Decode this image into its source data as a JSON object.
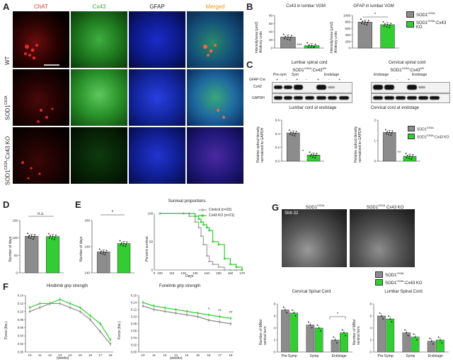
{
  "panelA": {
    "letter": "A",
    "columns": [
      {
        "label": "ChAT",
        "color": "#e8342a"
      },
      {
        "label": "Cx43",
        "color": "#2fae2f"
      },
      {
        "label": "GFAP",
        "color": "#222222"
      },
      {
        "label": "Merged",
        "color": "#e89a1a"
      }
    ],
    "rows": [
      "WT",
      "SOD1",
      "SOD1"
    ],
    "row_sup": [
      "",
      "G93A",
      "G93A"
    ],
    "row_suffix": [
      "",
      "",
      ":Cx43 KO"
    ]
  },
  "panelB": {
    "letter": "B",
    "left_title": "Cx43 in lumbar VGM",
    "right_title": "GFAP in lumbar VGM",
    "left_ylabel": "Intensity/area (µm2)\nArbitrary units",
    "right_ylabel": "Intensity/area (µm2)\nArbitrary units",
    "left_sig": "***",
    "right_sig": "*",
    "legend": [
      "SOD1",
      "SOD1"
    ],
    "legend_sup": [
      "G93A",
      "G93A"
    ],
    "legend_suffix": [
      "",
      ":Cx43 KO"
    ]
  },
  "panelC": {
    "letter": "C",
    "left_title": "Lumbar spinal cord",
    "right_title": "Cervical spinal cord",
    "left_geno": "SOD1",
    "left_geno_sup": "G93A",
    "left_geno_suffix": ":Cx43",
    "left_geno_sup2": "fl/fl",
    "right_geno": "SOD1",
    "right_geno_sup": "G93A",
    "right_geno_suffix": ":Cx43",
    "right_geno_sup2": "fl/fl",
    "row_labels": [
      "GFAP-Cre",
      "Cx43",
      "GAPDH"
    ],
    "stage_labels": [
      "Pre-sym",
      "Sym",
      "Endstage",
      "Endstage",
      "Endstage"
    ],
    "cre_marks": [
      "+",
      "-",
      "+",
      "-",
      "+",
      "-",
      "+",
      "-",
      "-",
      "+"
    ],
    "lumbar_chart_title": "Lumbar cord at endstage",
    "cervical_chart_title": "Cervical cord at endstage",
    "ylabel": "Relative optical density\nnormalized to GAPDH",
    "lumbar_sig": "*",
    "cervical_sig": "**"
  },
  "panelD": {
    "letter": "D",
    "ylabel": "Number of days",
    "sig": "n.s."
  },
  "panelE": {
    "letter": "E",
    "ylabel": "Number of days",
    "sig": "*",
    "survival_title": "Survival proportions",
    "survival_ylabel": "Percent survival",
    "survival_xlabel": "Days",
    "legend": [
      "Control (n=20)",
      "Cx43 KO (n=21)"
    ]
  },
  "panelF": {
    "letter": "F",
    "hind_title": "Hindlimb grip strength",
    "fore_title": "Forelimb grip strength",
    "ylabel": "Force (lbs.)",
    "xlabel": "(weeks)",
    "cervical_title": "Cervical Spinal Cord",
    "lumbar_title": "Lumbar Spinal Cord",
    "mn_ylabel": "Number of MNs/\nventral horn",
    "fore_sigs": [
      "*",
      "**",
      "**"
    ],
    "cervical_sig": "*"
  },
  "panelG": {
    "letter": "G",
    "left_label": "SOD1",
    "left_sup": "G93A",
    "right_label": "SOD1",
    "right_sup": "G93A",
    "right_suffix": " Cx43 KO",
    "stain": "SMI-32",
    "legend": [
      "SOD1",
      "SOD1"
    ],
    "legend_sup": [
      "G93A",
      "G93A"
    ],
    "legend_suffix": [
      "",
      ":Cx43 KO"
    ]
  },
  "colors": {
    "control": "#8c8c8c",
    "ko": "#33cc33",
    "survival_control": "#a0a0a0",
    "survival_ko": "#33cc33"
  },
  "chart_data": [
    {
      "type": "bar",
      "categories": [
        "SOD1 G93A",
        "SOD1 G93A:Cx43 KO"
      ],
      "values": [
        27,
        6
      ],
      "ylim": [
        0,
        80
      ],
      "ytick_labels": [
        "0",
        "20",
        "40",
        "60",
        "80"
      ]
    },
    {
      "type": "bar",
      "categories": [
        "SOD1 G93A",
        "SOD1 G93A:Cx43 KO"
      ],
      "values": [
        800,
        720
      ],
      "ylim": [
        0,
        1000
      ],
      "ytick_labels": [
        "0",
        "200",
        "400",
        "600",
        "800",
        "1000"
      ]
    },
    {
      "type": "bar",
      "categories": [
        "SOD1 G93A",
        "SOD1 G93A:Cx43 KO"
      ],
      "values": [
        0.55,
        0.12
      ],
      "ylim": [
        0,
        0.8
      ],
      "ytick_labels": [
        "0.0",
        "0.2",
        "0.4",
        "0.6"
      ]
    },
    {
      "type": "bar",
      "categories": [
        "SOD1 G93A",
        "SOD1 G93A:Cx43 KO"
      ],
      "values": [
        1.75,
        0.3
      ],
      "ylim": [
        0,
        2.5
      ],
      "ytick_labels": [
        "0",
        "1",
        "2"
      ]
    },
    {
      "type": "bar",
      "categories": [
        "SOD1 G93A",
        "SOD1 G93A:Cx43 KO"
      ],
      "values": [
        105,
        104
      ],
      "ylim": [
        0,
        150
      ],
      "ytick_labels": [
        "0",
        "50",
        "100",
        "150"
      ]
    },
    {
      "type": "bar",
      "categories": [
        "SOD1 G93A",
        "SOD1 G93A:Cx43 KO"
      ],
      "values": [
        140,
        148
      ],
      "ylim": [
        120,
        170
      ],
      "ytick_labels": [
        "140",
        "160",
        "180"
      ]
    },
    {
      "type": "line",
      "x": [
        100,
        120,
        125,
        130,
        133,
        135,
        137,
        140,
        142,
        145,
        150,
        155,
        160,
        165,
        170
      ],
      "series": [
        {
          "name": "Control (n=20)",
          "values": [
            100,
            100,
            95,
            85,
            75,
            60,
            45,
            25,
            15,
            10,
            5,
            0,
            0,
            0,
            0
          ]
        },
        {
          "name": "Cx43 KO (n=21)",
          "values": [
            100,
            100,
            100,
            95,
            90,
            85,
            80,
            75,
            70,
            50,
            45,
            20,
            10,
            5,
            0
          ]
        }
      ],
      "xlim": [
        100,
        170
      ],
      "ylim": [
        0,
        100
      ],
      "xtick_labels": [
        "0",
        "100",
        "110",
        "120",
        "130",
        "140",
        "150",
        "160",
        "170"
      ],
      "ytick_labels": [
        "0",
        "50",
        "100"
      ]
    },
    {
      "type": "line",
      "x": [
        10,
        11,
        12,
        13,
        14,
        15,
        16,
        17,
        18
      ],
      "series": [
        {
          "name": "SOD1 G93A",
          "values": [
            0.1,
            0.11,
            0.12,
            0.12,
            0.11,
            0.1,
            0.08,
            0.05,
            0.02
          ]
        },
        {
          "name": "SOD1 G93A:Cx43 KO",
          "values": [
            0.11,
            0.12,
            0.12,
            0.13,
            0.12,
            0.11,
            0.09,
            0.07,
            0.03
          ]
        }
      ],
      "ylim": [
        0,
        0.14
      ],
      "ytick_labels": [
        "0.00",
        "0.02",
        "0.04",
        "0.06",
        "0.08",
        "0.10",
        "0.12",
        "0.14"
      ]
    },
    {
      "type": "line",
      "x": [
        10,
        11,
        12,
        13,
        14,
        15,
        16,
        17,
        18
      ],
      "series": [
        {
          "name": "SOD1 G93A",
          "values": [
            0.13,
            0.12,
            0.115,
            0.11,
            0.105,
            0.1,
            0.09,
            0.085,
            0.08
          ]
        },
        {
          "name": "SOD1 G93A:Cx43 KO",
          "values": [
            0.14,
            0.13,
            0.125,
            0.12,
            0.115,
            0.11,
            0.105,
            0.1,
            0.095
          ]
        }
      ],
      "ylim": [
        0,
        0.16
      ],
      "ytick_labels": [
        "0.00",
        "0.02",
        "0.04",
        "0.06",
        "0.08",
        "0.10",
        "0.12",
        "0.14",
        "0.16"
      ]
    },
    {
      "type": "bar",
      "categories": [
        "Pre-Symp",
        "Symp",
        "Endstage"
      ],
      "series": [
        {
          "name": "SOD1 G93A",
          "values": [
            7,
            4.5,
            2
          ]
        },
        {
          "name": "SOD1 G93A:Cx43 KO",
          "values": [
            6.5,
            4,
            3.2
          ]
        }
      ],
      "ylim": [
        0,
        8
      ],
      "ytick_labels": [
        "0",
        "2",
        "4",
        "6",
        "8"
      ]
    },
    {
      "type": "bar",
      "categories": [
        "Pre-Symp",
        "Symp",
        "Endstage"
      ],
      "series": [
        {
          "name": "SOD1 G93A",
          "values": [
            6,
            3.2,
            1.8
          ]
        },
        {
          "name": "SOD1 G93A:Cx43 KO",
          "values": [
            5.5,
            2.5,
            2
          ]
        }
      ],
      "ylim": [
        0,
        8
      ],
      "ytick_labels": [
        "0",
        "2",
        "4",
        "6",
        "8"
      ]
    }
  ]
}
